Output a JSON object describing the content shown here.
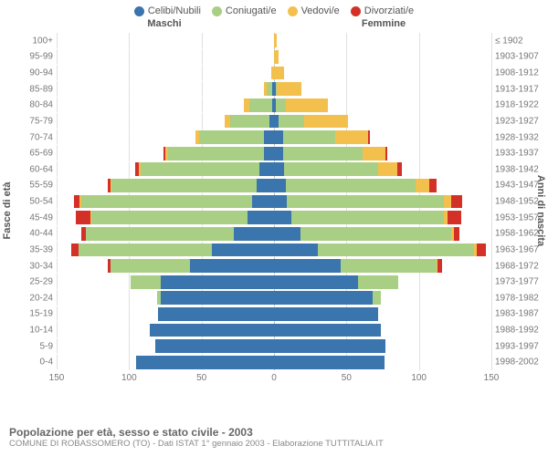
{
  "legend": {
    "items": [
      {
        "label": "Celibi/Nubili",
        "color": "#3a75ad"
      },
      {
        "label": "Coniugati/e",
        "color": "#a9cf85"
      },
      {
        "label": "Vedovi/e",
        "color": "#f4c04d"
      },
      {
        "label": "Divorziati/e",
        "color": "#d33127"
      }
    ]
  },
  "headers": {
    "male": "Maschi",
    "female": "Femmine"
  },
  "axis": {
    "left_title": "Fasce di età",
    "right_title": "Anni di nascita",
    "xmax": 150,
    "xticks_left": [
      150,
      100,
      50,
      0
    ],
    "xticks_right": [
      50,
      100,
      150
    ],
    "grid_color": "#e0e0e0",
    "dash_color": "#bbbbbb"
  },
  "rows": [
    {
      "age": "100+",
      "birth": "≤ 1902",
      "m": [
        0,
        0,
        0,
        0
      ],
      "f": [
        0,
        0,
        2,
        0
      ]
    },
    {
      "age": "95-99",
      "birth": "1903-1907",
      "m": [
        0,
        0,
        0,
        0
      ],
      "f": [
        0,
        0,
        3,
        0
      ]
    },
    {
      "age": "90-94",
      "birth": "1908-1912",
      "m": [
        0,
        0,
        2,
        0
      ],
      "f": [
        0,
        0,
        7,
        0
      ]
    },
    {
      "age": "85-89",
      "birth": "1913-1917",
      "m": [
        1,
        4,
        2,
        0
      ],
      "f": [
        1,
        1,
        17,
        0
      ]
    },
    {
      "age": "80-84",
      "birth": "1918-1922",
      "m": [
        1,
        16,
        4,
        0
      ],
      "f": [
        1,
        7,
        29,
        0
      ]
    },
    {
      "age": "75-79",
      "birth": "1923-1927",
      "m": [
        3,
        27,
        4,
        0
      ],
      "f": [
        3,
        18,
        30,
        0
      ]
    },
    {
      "age": "70-74",
      "birth": "1928-1932",
      "m": [
        7,
        45,
        2,
        0
      ],
      "f": [
        6,
        36,
        23,
        1
      ]
    },
    {
      "age": "65-69",
      "birth": "1933-1937",
      "m": [
        7,
        66,
        2,
        1
      ],
      "f": [
        6,
        55,
        16,
        1
      ]
    },
    {
      "age": "60-64",
      "birth": "1938-1942",
      "m": [
        10,
        82,
        1,
        3
      ],
      "f": [
        7,
        65,
        13,
        3
      ]
    },
    {
      "age": "55-59",
      "birth": "1943-1947",
      "m": [
        12,
        100,
        1,
        2
      ],
      "f": [
        8,
        90,
        9,
        5
      ]
    },
    {
      "age": "50-54",
      "birth": "1948-1952",
      "m": [
        15,
        118,
        1,
        4
      ],
      "f": [
        9,
        108,
        5,
        8
      ]
    },
    {
      "age": "45-49",
      "birth": "1953-1957",
      "m": [
        18,
        108,
        1,
        10
      ],
      "f": [
        12,
        105,
        3,
        9
      ]
    },
    {
      "age": "40-44",
      "birth": "1958-1962",
      "m": [
        28,
        102,
        0,
        3
      ],
      "f": [
        18,
        104,
        2,
        4
      ]
    },
    {
      "age": "35-39",
      "birth": "1963-1967",
      "m": [
        43,
        92,
        0,
        5
      ],
      "f": [
        30,
        108,
        2,
        6
      ]
    },
    {
      "age": "30-34",
      "birth": "1968-1972",
      "m": [
        58,
        55,
        0,
        2
      ],
      "f": [
        46,
        66,
        1,
        3
      ]
    },
    {
      "age": "25-29",
      "birth": "1973-1977",
      "m": [
        78,
        21,
        0,
        0
      ],
      "f": [
        58,
        28,
        0,
        0
      ]
    },
    {
      "age": "20-24",
      "birth": "1978-1982",
      "m": [
        78,
        3,
        0,
        0
      ],
      "f": [
        68,
        6,
        0,
        0
      ]
    },
    {
      "age": "15-19",
      "birth": "1983-1987",
      "m": [
        80,
        0,
        0,
        0
      ],
      "f": [
        72,
        0,
        0,
        0
      ]
    },
    {
      "age": "10-14",
      "birth": "1988-1992",
      "m": [
        86,
        0,
        0,
        0
      ],
      "f": [
        74,
        0,
        0,
        0
      ]
    },
    {
      "age": "5-9",
      "birth": "1993-1997",
      "m": [
        82,
        0,
        0,
        0
      ],
      "f": [
        77,
        0,
        0,
        0
      ]
    },
    {
      "age": "0-4",
      "birth": "1998-2002",
      "m": [
        95,
        0,
        0,
        0
      ],
      "f": [
        76,
        0,
        0,
        0
      ]
    }
  ],
  "footer": {
    "title": "Popolazione per età, sesso e stato civile - 2003",
    "subtitle": "COMUNE DI ROBASSOMERO (TO) - Dati ISTAT 1° gennaio 2003 - Elaborazione TUTTITALIA.IT"
  }
}
